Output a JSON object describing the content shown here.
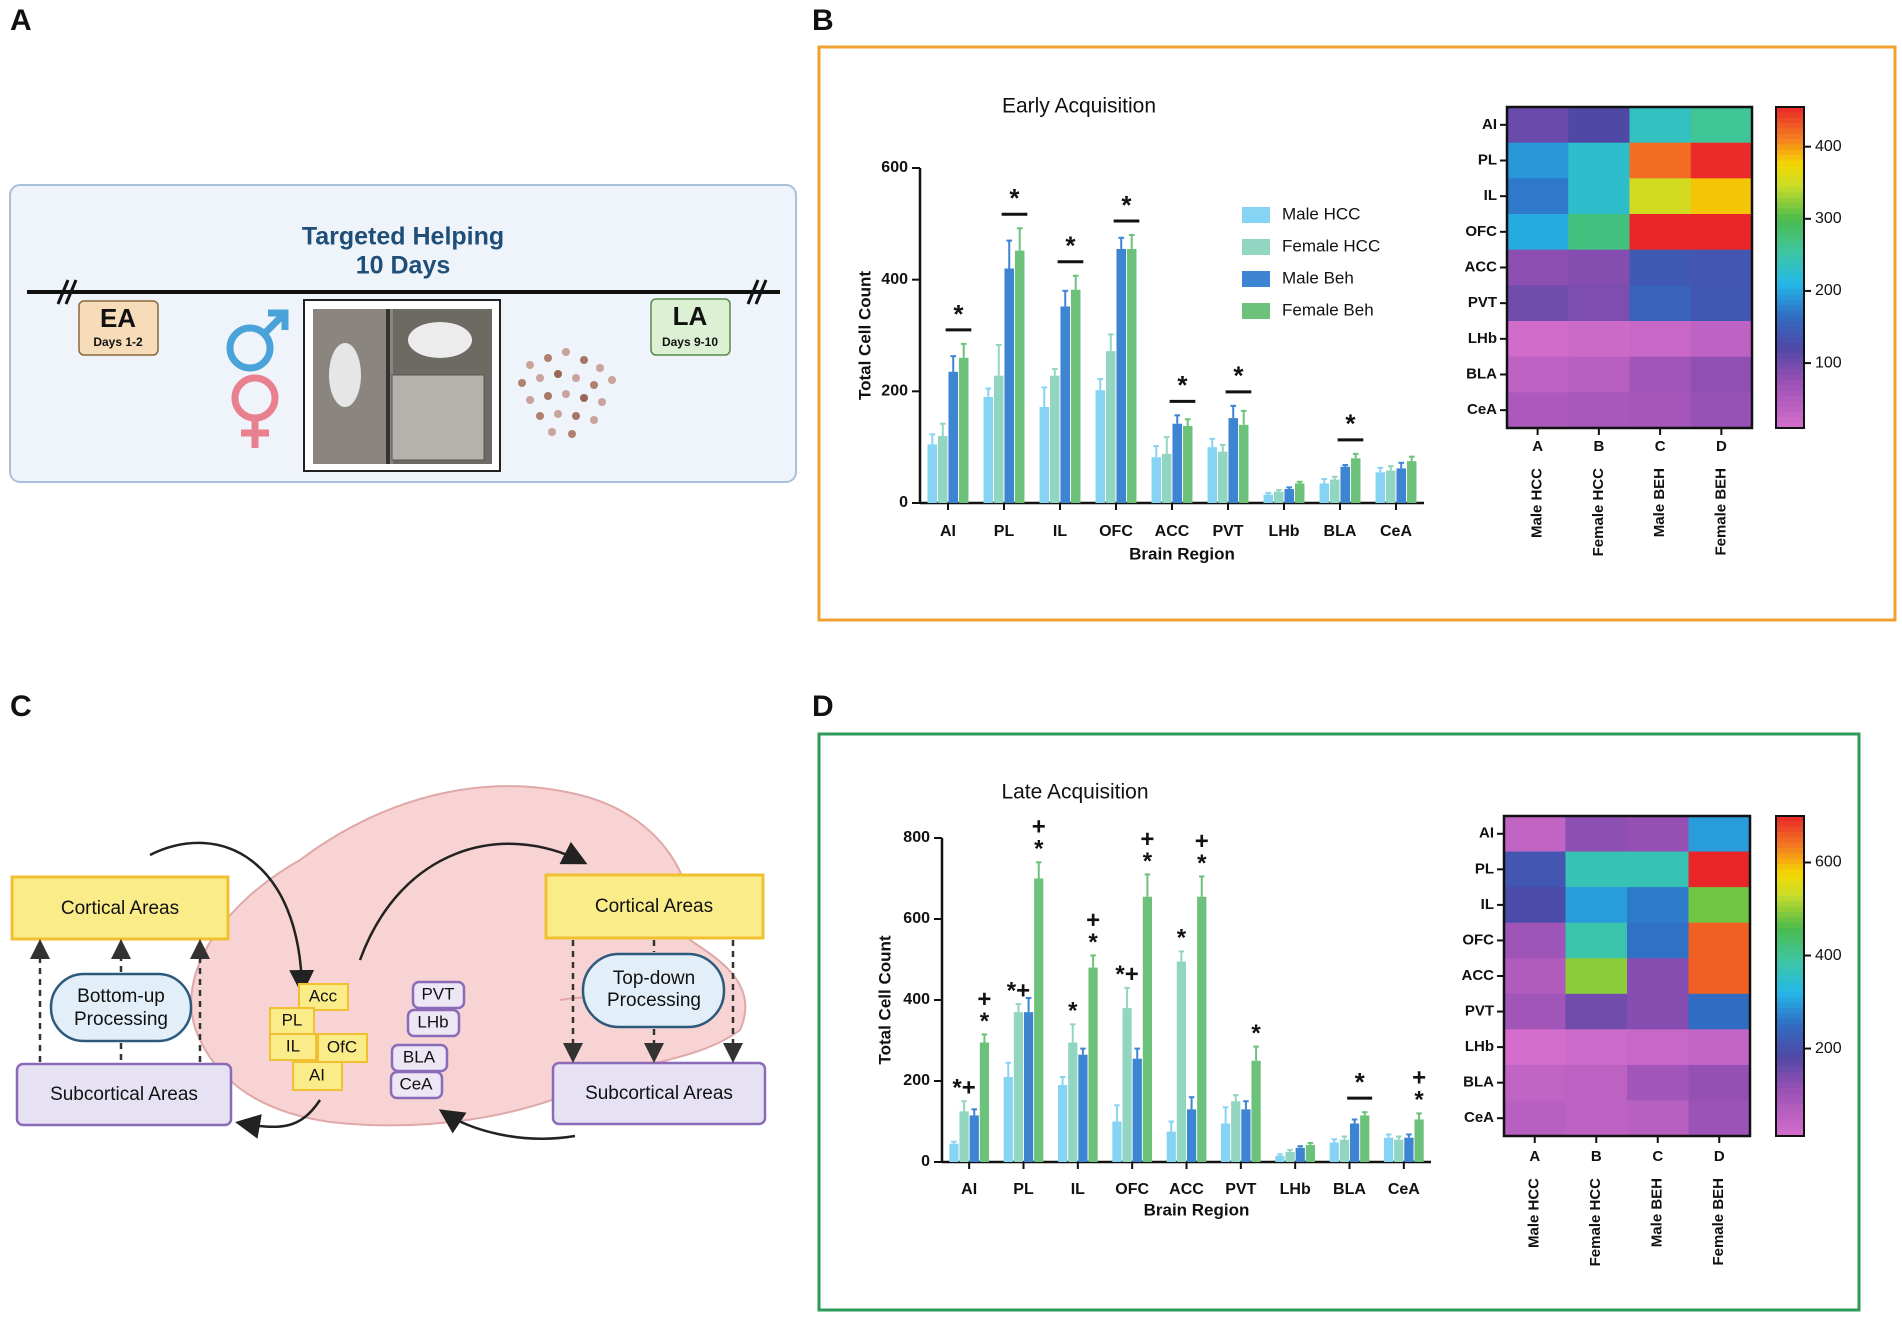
{
  "panel_labels": [
    "A",
    "B",
    "C",
    "D"
  ],
  "timeline": {
    "title": "Targeted Helping",
    "subtitle": "10 Days",
    "start_label": "EA",
    "start_days": "Days 1-2",
    "end_label": "LA",
    "end_days": "Days 9-10"
  },
  "circuit": {
    "cortical_left": "Cortical Areas",
    "bottom_up": [
      "Bottom-up",
      "Processing"
    ],
    "subcortical_left": "Subcortical Areas",
    "cortical_right": "Cortical Areas",
    "top_down": [
      "Top-down",
      "Processing"
    ],
    "subcortical_right": "Subcortical Areas",
    "cortical_regions": [
      "Acc",
      "PL",
      "IL",
      "OfC",
      "AI"
    ],
    "subcortical_regions": [
      "PVT",
      "LHb",
      "BLA",
      "CeA"
    ]
  },
  "chart_data": [
    {
      "type": "bar",
      "title": "Early Acquisition",
      "x_label": "Brain Region",
      "y_label": "Total Cell Count",
      "legend": "top-right",
      "categories": [
        "AI",
        "PL",
        "IL",
        "OFC",
        "ACC",
        "PVT",
        "LHb",
        "BLA",
        "CeA"
      ],
      "ylim": [
        0,
        600
      ],
      "yticks": [
        0,
        200,
        400,
        600
      ],
      "series": [
        {
          "name": "Male HCC",
          "color": "#86d4f4",
          "values": [
            105,
            190,
            172,
            202,
            82,
            100,
            15,
            35,
            55
          ],
          "errors": [
            18,
            15,
            35,
            20,
            20,
            15,
            3,
            8,
            8
          ]
        },
        {
          "name": "Female HCC",
          "color": "#92d5c0",
          "values": [
            120,
            228,
            228,
            272,
            88,
            92,
            20,
            42,
            58
          ],
          "errors": [
            22,
            55,
            12,
            30,
            30,
            12,
            3,
            5,
            8
          ]
        },
        {
          "name": "Male Beh",
          "color": "#3d84d2",
          "values": [
            235,
            420,
            352,
            455,
            142,
            152,
            25,
            65,
            62
          ],
          "errors": [
            28,
            50,
            28,
            20,
            15,
            22,
            3,
            3,
            10
          ]
        },
        {
          "name": "Female Beh",
          "color": "#6cc27a",
          "values": [
            260,
            452,
            382,
            455,
            138,
            140,
            35,
            80,
            75
          ],
          "errors": [
            25,
            40,
            25,
            25,
            12,
            25,
            3,
            8,
            8
          ]
        }
      ],
      "significance": [
        "*",
        "*",
        "*",
        "*",
        "*",
        "*",
        null,
        "*",
        null
      ]
    },
    {
      "type": "heatmap",
      "rows": [
        "AI",
        "PL",
        "IL",
        "OFC",
        "ACC",
        "PVT",
        "LHb",
        "BLA",
        "CeA"
      ],
      "columns": [
        "A",
        "B",
        "C",
        "D"
      ],
      "column_names": [
        "Male HCC",
        "Female HCC",
        "Male BEH",
        "Female BEH"
      ],
      "z": [
        [
          105,
          120,
          235,
          260
        ],
        [
          190,
          228,
          420,
          452
        ],
        [
          172,
          228,
          352,
          382
        ],
        [
          202,
          272,
          455,
          455
        ],
        [
          82,
          88,
          142,
          138
        ],
        [
          100,
          92,
          152,
          140
        ],
        [
          15,
          20,
          25,
          35
        ],
        [
          35,
          42,
          65,
          80
        ],
        [
          55,
          58,
          62,
          75
        ]
      ],
      "zlim": [
        10,
        455
      ],
      "zticks": [
        100,
        200,
        300,
        400
      ]
    },
    {
      "type": "bar",
      "title": "Late Acquisition",
      "x_label": "Brain Region",
      "y_label": "Total Cell Count",
      "categories": [
        "AI",
        "PL",
        "IL",
        "OFC",
        "ACC",
        "PVT",
        "LHb",
        "BLA",
        "CeA"
      ],
      "ylim": [
        0,
        800
      ],
      "yticks": [
        0,
        200,
        400,
        600,
        800
      ],
      "series": [
        {
          "color": "#86d4f4",
          "values": [
            45,
            210,
            190,
            100,
            75,
            95,
            15,
            48,
            60
          ],
          "errors": [
            5,
            35,
            20,
            40,
            25,
            40,
            4,
            8,
            8
          ],
          "annotations": [
            null,
            null,
            null,
            null,
            null,
            null,
            null,
            null,
            null
          ]
        },
        {
          "color": "#92d5c0",
          "values": [
            125,
            370,
            295,
            380,
            495,
            150,
            25,
            55,
            55
          ],
          "errors": [
            25,
            20,
            45,
            50,
            25,
            15,
            5,
            8,
            8
          ],
          "annotations": [
            [
              "*+"
            ],
            [
              "*+"
            ],
            [
              "*"
            ],
            [
              "*+"
            ],
            [
              "*"
            ],
            null,
            null,
            null,
            null
          ]
        },
        {
          "color": "#3d84d2",
          "values": [
            115,
            370,
            265,
            255,
            130,
            130,
            35,
            95,
            60
          ],
          "errors": [
            15,
            35,
            15,
            25,
            30,
            20,
            4,
            10,
            8
          ],
          "annotations": [
            null,
            null,
            null,
            null,
            null,
            null,
            null,
            null,
            null
          ]
        },
        {
          "color": "#6cc27a",
          "values": [
            295,
            700,
            480,
            655,
            655,
            250,
            42,
            115,
            105
          ],
          "errors": [
            20,
            40,
            30,
            55,
            50,
            35,
            5,
            8,
            15
          ],
          "annotations": [
            [
              "+",
              "*"
            ],
            [
              "+",
              "*"
            ],
            [
              "+",
              "*"
            ],
            [
              "+",
              "*"
            ],
            [
              "+",
              "*"
            ],
            [
              "*"
            ],
            null,
            null,
            [
              "+",
              "*"
            ]
          ]
        }
      ],
      "significance": [
        null,
        null,
        null,
        null,
        null,
        null,
        null,
        "*",
        null
      ]
    },
    {
      "type": "heatmap",
      "rows": [
        "AI",
        "PL",
        "IL",
        "OFC",
        "ACC",
        "PVT",
        "LHb",
        "BLA",
        "CeA"
      ],
      "columns": [
        "A",
        "B",
        "C",
        "D"
      ],
      "column_names": [
        "Male HCC",
        "Female HCC",
        "Male BEH",
        "Female BEH"
      ],
      "z": [
        [
          45,
          125,
          115,
          295
        ],
        [
          210,
          370,
          370,
          700
        ],
        [
          190,
          295,
          265,
          480
        ],
        [
          100,
          380,
          255,
          655
        ],
        [
          75,
          495,
          130,
          655
        ],
        [
          95,
          150,
          130,
          250
        ],
        [
          15,
          25,
          35,
          42
        ],
        [
          48,
          55,
          95,
          115
        ],
        [
          60,
          55,
          60,
          105
        ]
      ],
      "zlim": [
        12,
        700
      ],
      "zticks": [
        200,
        400,
        600
      ]
    }
  ]
}
